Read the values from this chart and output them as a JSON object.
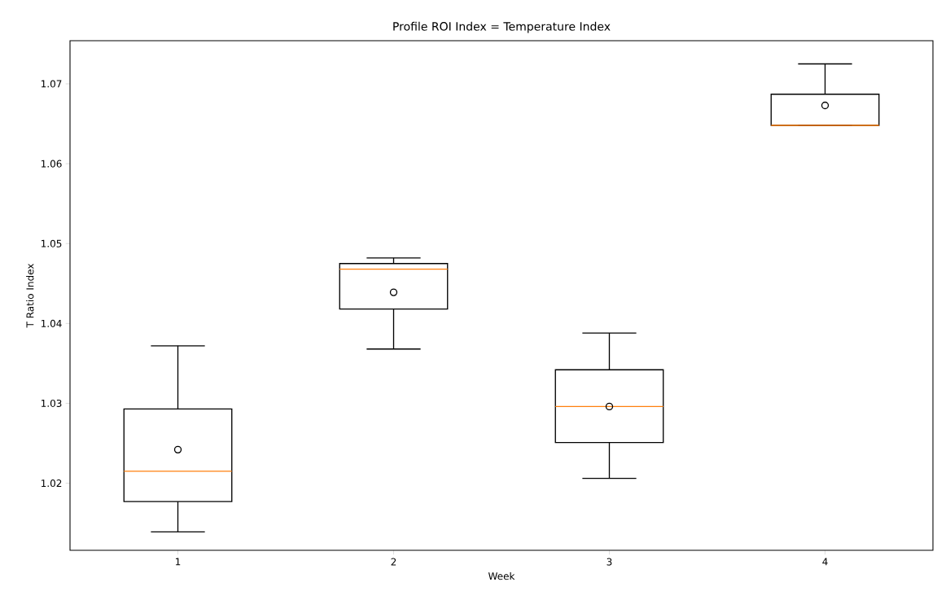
{
  "chart_data": {
    "type": "box",
    "title": "Profile ROI Index = Temperature Index",
    "xlabel": "Week",
    "ylabel": "T Ratio Index",
    "categories": [
      "1",
      "2",
      "3",
      "4"
    ],
    "series": [
      {
        "color": "#000000",
        "boxes": [
          {
            "low": 1.0139,
            "q1": 1.0177,
            "median": 1.0215,
            "q3": 1.0293,
            "high": 1.0372,
            "mean": 1.0242
          },
          {
            "low": 1.0368,
            "q1": 1.0418,
            "median": 1.0468,
            "q3": 1.0475,
            "high": 1.0482,
            "mean": 1.0439
          },
          {
            "low": 1.0206,
            "q1": 1.0251,
            "median": 1.0296,
            "q3": 1.0342,
            "high": 1.0388,
            "mean": 1.0296
          },
          {
            "low": 1.0648,
            "q1": 1.0648,
            "median": 1.0648,
            "q3": 1.0687,
            "high": 1.0725,
            "mean": 1.0673
          }
        ]
      }
    ],
    "ylim": [
      1.0116,
      1.0754
    ],
    "yticks": [
      1.02,
      1.03,
      1.04,
      1.05,
      1.06,
      1.07
    ],
    "grid": false
  }
}
